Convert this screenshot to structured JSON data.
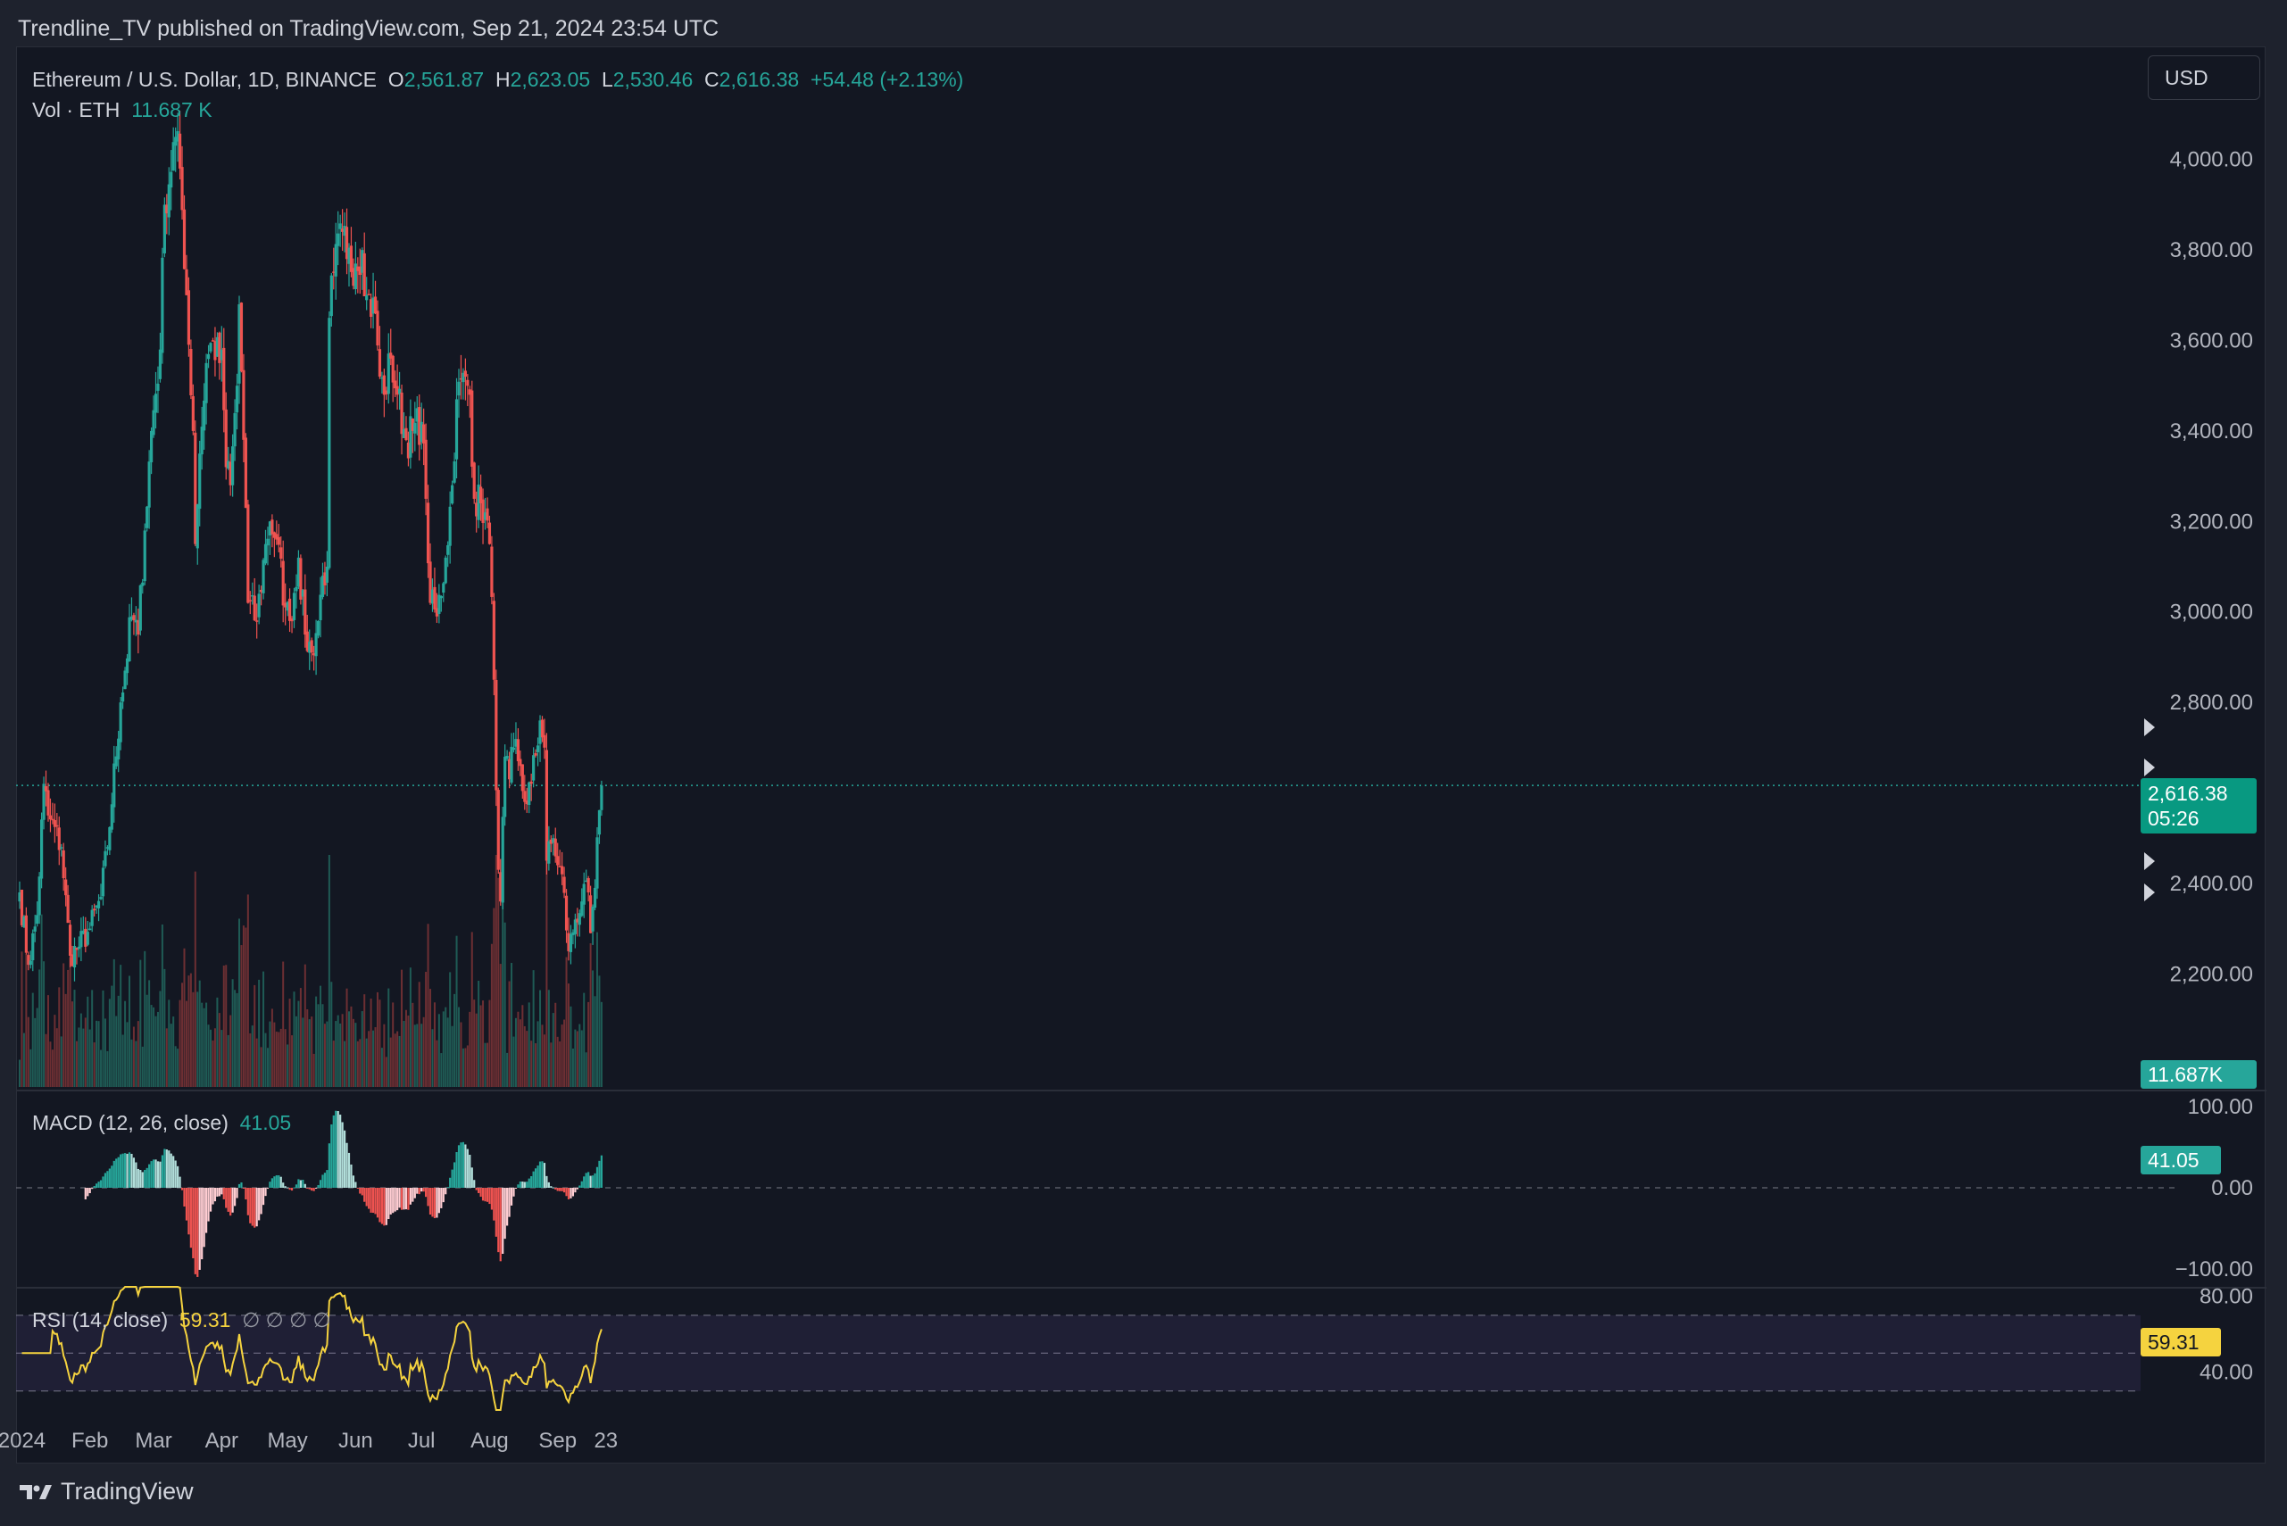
{
  "header": {
    "credit": "Trendline_TV published on TradingView.com, Sep 21, 2024 23:54 UTC",
    "currency_button": "USD",
    "brand": "TradingView"
  },
  "legend": {
    "symbol": "Ethereum / U.S. Dollar, 1D, BINANCE",
    "o_label": "O",
    "o_value": "2,561.87",
    "h_label": "H",
    "h_value": "2,623.05",
    "l_label": "L",
    "l_value": "2,530.46",
    "c_label": "C",
    "c_value": "2,616.38",
    "change": "+54.48 (+2.13%)",
    "vol_label": "Vol · ETH",
    "vol_value": "11.687 K",
    "macd_label": "MACD (12, 26, close)",
    "macd_value": "41.05",
    "rsi_label": "RSI (14, close)",
    "rsi_value": "59.31",
    "rsi_extra": "∅ ∅ ∅ ∅"
  },
  "badges": {
    "price": "2,616.38",
    "countdown": "05:26",
    "volume": "11.687K",
    "macd": "41.05",
    "rsi": "59.31"
  },
  "colors": {
    "up": "#26a69a",
    "down": "#ef5350",
    "up_light": "#b2dfdb",
    "down_light": "#ffcdd2",
    "rsi": "#f5d33f",
    "background": "#131722"
  },
  "chart_data": [
    {
      "type": "candlestick",
      "title": "Ethereum / U.S. Dollar, 1D, BINANCE",
      "x_tick_labels": [
        "2024",
        "Feb",
        "Mar",
        "Apr",
        "May",
        "Jun",
        "Jul",
        "Aug",
        "Sep",
        "23"
      ],
      "y_tick_labels": [
        "4,000.00",
        "3,800.00",
        "3,600.00",
        "3,400.00",
        "3,200.00",
        "3,000.00",
        "2,800.00",
        "2,400.00",
        "2,200.00"
      ],
      "ylim": [
        1950,
        4250
      ],
      "last_close": 2616.38,
      "start_date": "2023-12-31",
      "anchors": [
        [
          "2023-12-31",
          2380
        ],
        [
          "2024-01-04",
          2220
        ],
        [
          "2024-01-08",
          2330
        ],
        [
          "2024-01-11",
          2620
        ],
        [
          "2024-01-13",
          2550
        ],
        [
          "2024-01-19",
          2480
        ],
        [
          "2024-01-23",
          2240
        ],
        [
          "2024-01-27",
          2260
        ],
        [
          "2024-02-01",
          2300
        ],
        [
          "2024-02-06",
          2370
        ],
        [
          "2024-02-09",
          2480
        ],
        [
          "2024-02-15",
          2800
        ],
        [
          "2024-02-20",
          2990
        ],
        [
          "2024-02-23",
          2950
        ],
        [
          "2024-02-26",
          3180
        ],
        [
          "2024-02-29",
          3400
        ],
        [
          "2024-03-04",
          3580
        ],
        [
          "2024-03-06",
          3900
        ],
        [
          "2024-03-11",
          4050
        ],
        [
          "2024-03-13",
          3980
        ],
        [
          "2024-03-16",
          3700
        ],
        [
          "2024-03-19",
          3400
        ],
        [
          "2024-03-20",
          3150
        ],
        [
          "2024-03-22",
          3350
        ],
        [
          "2024-03-25",
          3550
        ],
        [
          "2024-03-28",
          3600
        ],
        [
          "2024-03-31",
          3550
        ],
        [
          "2024-04-01",
          3580
        ],
        [
          "2024-04-03",
          3320
        ],
        [
          "2024-04-05",
          3280
        ],
        [
          "2024-04-08",
          3500
        ],
        [
          "2024-04-09",
          3680
        ],
        [
          "2024-04-12",
          3230
        ],
        [
          "2024-04-13",
          3020
        ],
        [
          "2024-04-17",
          2980
        ],
        [
          "2024-04-21",
          3150
        ],
        [
          "2024-04-23",
          3200
        ],
        [
          "2024-04-26",
          3160
        ],
        [
          "2024-04-30",
          3010
        ],
        [
          "2024-05-02",
          2980
        ],
        [
          "2024-05-06",
          3120
        ],
        [
          "2024-05-09",
          2950
        ],
        [
          "2024-05-12",
          2910
        ],
        [
          "2024-05-15",
          2980
        ],
        [
          "2024-05-17",
          3080
        ],
        [
          "2024-05-19",
          3100
        ],
        [
          "2024-05-20",
          3650
        ],
        [
          "2024-05-22",
          3750
        ],
        [
          "2024-05-26",
          3840
        ],
        [
          "2024-05-28",
          3780
        ],
        [
          "2024-06-01",
          3770
        ],
        [
          "2024-06-04",
          3800
        ],
        [
          "2024-06-06",
          3700
        ],
        [
          "2024-06-10",
          3660
        ],
        [
          "2024-06-12",
          3520
        ],
        [
          "2024-06-14",
          3480
        ],
        [
          "2024-06-17",
          3560
        ],
        [
          "2024-06-20",
          3480
        ],
        [
          "2024-06-24",
          3380
        ],
        [
          "2024-06-27",
          3400
        ],
        [
          "2024-07-01",
          3420
        ],
        [
          "2024-07-03",
          3250
        ],
        [
          "2024-07-05",
          3020
        ],
        [
          "2024-07-08",
          2990
        ],
        [
          "2024-07-12",
          3120
        ],
        [
          "2024-07-15",
          3280
        ],
        [
          "2024-07-17",
          3470
        ],
        [
          "2024-07-21",
          3520
        ],
        [
          "2024-07-23",
          3480
        ],
        [
          "2024-07-25",
          3250
        ],
        [
          "2024-07-28",
          3240
        ],
        [
          "2024-07-30",
          3220
        ],
        [
          "2024-08-01",
          3150
        ],
        [
          "2024-08-03",
          2850
        ],
        [
          "2024-08-05",
          2430
        ],
        [
          "2024-08-06",
          2360
        ],
        [
          "2024-08-08",
          2680
        ],
        [
          "2024-08-10",
          2630
        ],
        [
          "2024-08-12",
          2700
        ],
        [
          "2024-08-14",
          2670
        ],
        [
          "2024-08-17",
          2580
        ],
        [
          "2024-08-20",
          2620
        ],
        [
          "2024-08-24",
          2760
        ],
        [
          "2024-08-26",
          2700
        ],
        [
          "2024-08-27",
          2450
        ],
        [
          "2024-08-30",
          2500
        ],
        [
          "2024-09-01",
          2440
        ],
        [
          "2024-09-03",
          2420
        ],
        [
          "2024-09-06",
          2250
        ],
        [
          "2024-09-09",
          2320
        ],
        [
          "2024-09-12",
          2360
        ],
        [
          "2024-09-15",
          2380
        ],
        [
          "2024-09-16",
          2290
        ],
        [
          "2024-09-18",
          2390
        ],
        [
          "2024-09-20",
          2561.87
        ],
        [
          "2024-09-21",
          2616.38
        ]
      ]
    },
    {
      "type": "bar",
      "title": "Vol · ETH",
      "last_value": "11.687 K"
    },
    {
      "type": "bar",
      "title": "MACD (12, 26, close)",
      "y_tick_labels": [
        "100.00",
        "0.00",
        "−100.00"
      ],
      "ylim": [
        -120,
        120
      ],
      "last_value": 41.05
    },
    {
      "type": "line",
      "title": "RSI (14, close)",
      "y_tick_labels": [
        "80.00",
        "40.00"
      ],
      "ylim": [
        20,
        85
      ],
      "bands": [
        30,
        50,
        70
      ],
      "last_value": 59.31
    }
  ]
}
